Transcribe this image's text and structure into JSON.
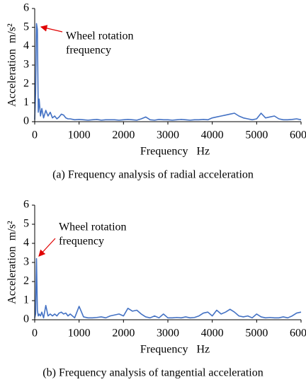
{
  "chart_data": [
    {
      "type": "line",
      "color": "#4472c4",
      "x": [
        0,
        20,
        40,
        60,
        80,
        100,
        130,
        160,
        200,
        250,
        300,
        350,
        400,
        450,
        500,
        550,
        600,
        650,
        700,
        750,
        800,
        900,
        1000,
        1100,
        1200,
        1300,
        1400,
        1500,
        1600,
        1700,
        1800,
        1900,
        2000,
        2100,
        2200,
        2300,
        2400,
        2500,
        2600,
        2700,
        2800,
        2900,
        3000,
        3100,
        3200,
        3300,
        3400,
        3500,
        3600,
        3700,
        3800,
        3900,
        4000,
        4100,
        4200,
        4300,
        4400,
        4500,
        4600,
        4700,
        4800,
        4900,
        5000,
        5100,
        5200,
        5300,
        5400,
        5500,
        5600,
        5700,
        5800,
        5900,
        6000
      ],
      "values": [
        0.1,
        1.5,
        5.2,
        4.9,
        0.5,
        1.2,
        0.3,
        0.7,
        0.2,
        0.6,
        0.3,
        0.5,
        0.2,
        0.3,
        0.15,
        0.25,
        0.4,
        0.35,
        0.2,
        0.15,
        0.15,
        0.1,
        0.12,
        0.1,
        0.08,
        0.1,
        0.12,
        0.08,
        0.1,
        0.1,
        0.1,
        0.08,
        0.1,
        0.12,
        0.1,
        0.08,
        0.15,
        0.25,
        0.1,
        0.08,
        0.12,
        0.1,
        0.1,
        0.08,
        0.1,
        0.12,
        0.1,
        0.08,
        0.1,
        0.1,
        0.12,
        0.1,
        0.2,
        0.25,
        0.3,
        0.35,
        0.4,
        0.45,
        0.3,
        0.2,
        0.15,
        0.1,
        0.15,
        0.45,
        0.2,
        0.25,
        0.3,
        0.15,
        0.1,
        0.1,
        0.12,
        0.15,
        0.1
      ],
      "xlim": [
        0,
        6000
      ],
      "xticks": [
        0,
        1000,
        2000,
        3000,
        4000,
        5000,
        6000
      ],
      "ylim": [
        0,
        6
      ],
      "yticks": [
        0,
        1,
        2,
        3,
        4,
        5,
        6
      ],
      "x_label": "Frequency   Hz",
      "y_label": "Acceleration  m/s²",
      "annotation": [
        "Wheel rotation",
        "frequency"
      ],
      "caption": "(a) Frequency analysis of radial acceleration"
    },
    {
      "type": "line",
      "color": "#4472c4",
      "x": [
        0,
        20,
        40,
        60,
        80,
        100,
        130,
        160,
        200,
        250,
        300,
        350,
        400,
        450,
        500,
        550,
        600,
        650,
        700,
        750,
        800,
        900,
        1000,
        1100,
        1200,
        1300,
        1400,
        1500,
        1600,
        1700,
        1800,
        1900,
        2000,
        2100,
        2200,
        2300,
        2400,
        2500,
        2600,
        2700,
        2800,
        2900,
        3000,
        3100,
        3200,
        3300,
        3400,
        3500,
        3600,
        3700,
        3800,
        3900,
        4000,
        4100,
        4200,
        4300,
        4400,
        4500,
        4600,
        4700,
        4800,
        4900,
        5000,
        5100,
        5200,
        5300,
        5400,
        5500,
        5600,
        5700,
        5800,
        5900,
        6000
      ],
      "values": [
        0.1,
        0.3,
        3.2,
        0.5,
        0.2,
        0.3,
        0.2,
        0.4,
        0.1,
        0.75,
        0.2,
        0.3,
        0.2,
        0.3,
        0.2,
        0.35,
        0.4,
        0.3,
        0.35,
        0.2,
        0.3,
        0.1,
        0.7,
        0.15,
        0.1,
        0.1,
        0.12,
        0.15,
        0.1,
        0.2,
        0.25,
        0.3,
        0.2,
        0.6,
        0.45,
        0.5,
        0.3,
        0.15,
        0.1,
        0.2,
        0.1,
        0.3,
        0.1,
        0.1,
        0.12,
        0.1,
        0.15,
        0.1,
        0.12,
        0.2,
        0.35,
        0.4,
        0.2,
        0.5,
        0.3,
        0.4,
        0.55,
        0.4,
        0.2,
        0.15,
        0.2,
        0.1,
        0.3,
        0.15,
        0.1,
        0.12,
        0.1,
        0.1,
        0.15,
        0.1,
        0.2,
        0.35,
        0.4
      ],
      "xlim": [
        0,
        6000
      ],
      "xticks": [
        0,
        1000,
        2000,
        3000,
        4000,
        5000,
        6000
      ],
      "ylim": [
        0,
        6
      ],
      "yticks": [
        0,
        1,
        2,
        3,
        4,
        5,
        6
      ],
      "x_label": "Frequency   Hz",
      "y_label": "Acceleration  m/s²",
      "annotation": [
        "Wheel rotation",
        "frequency"
      ],
      "caption": "(b) Frequency analysis of tangential acceleration"
    }
  ]
}
